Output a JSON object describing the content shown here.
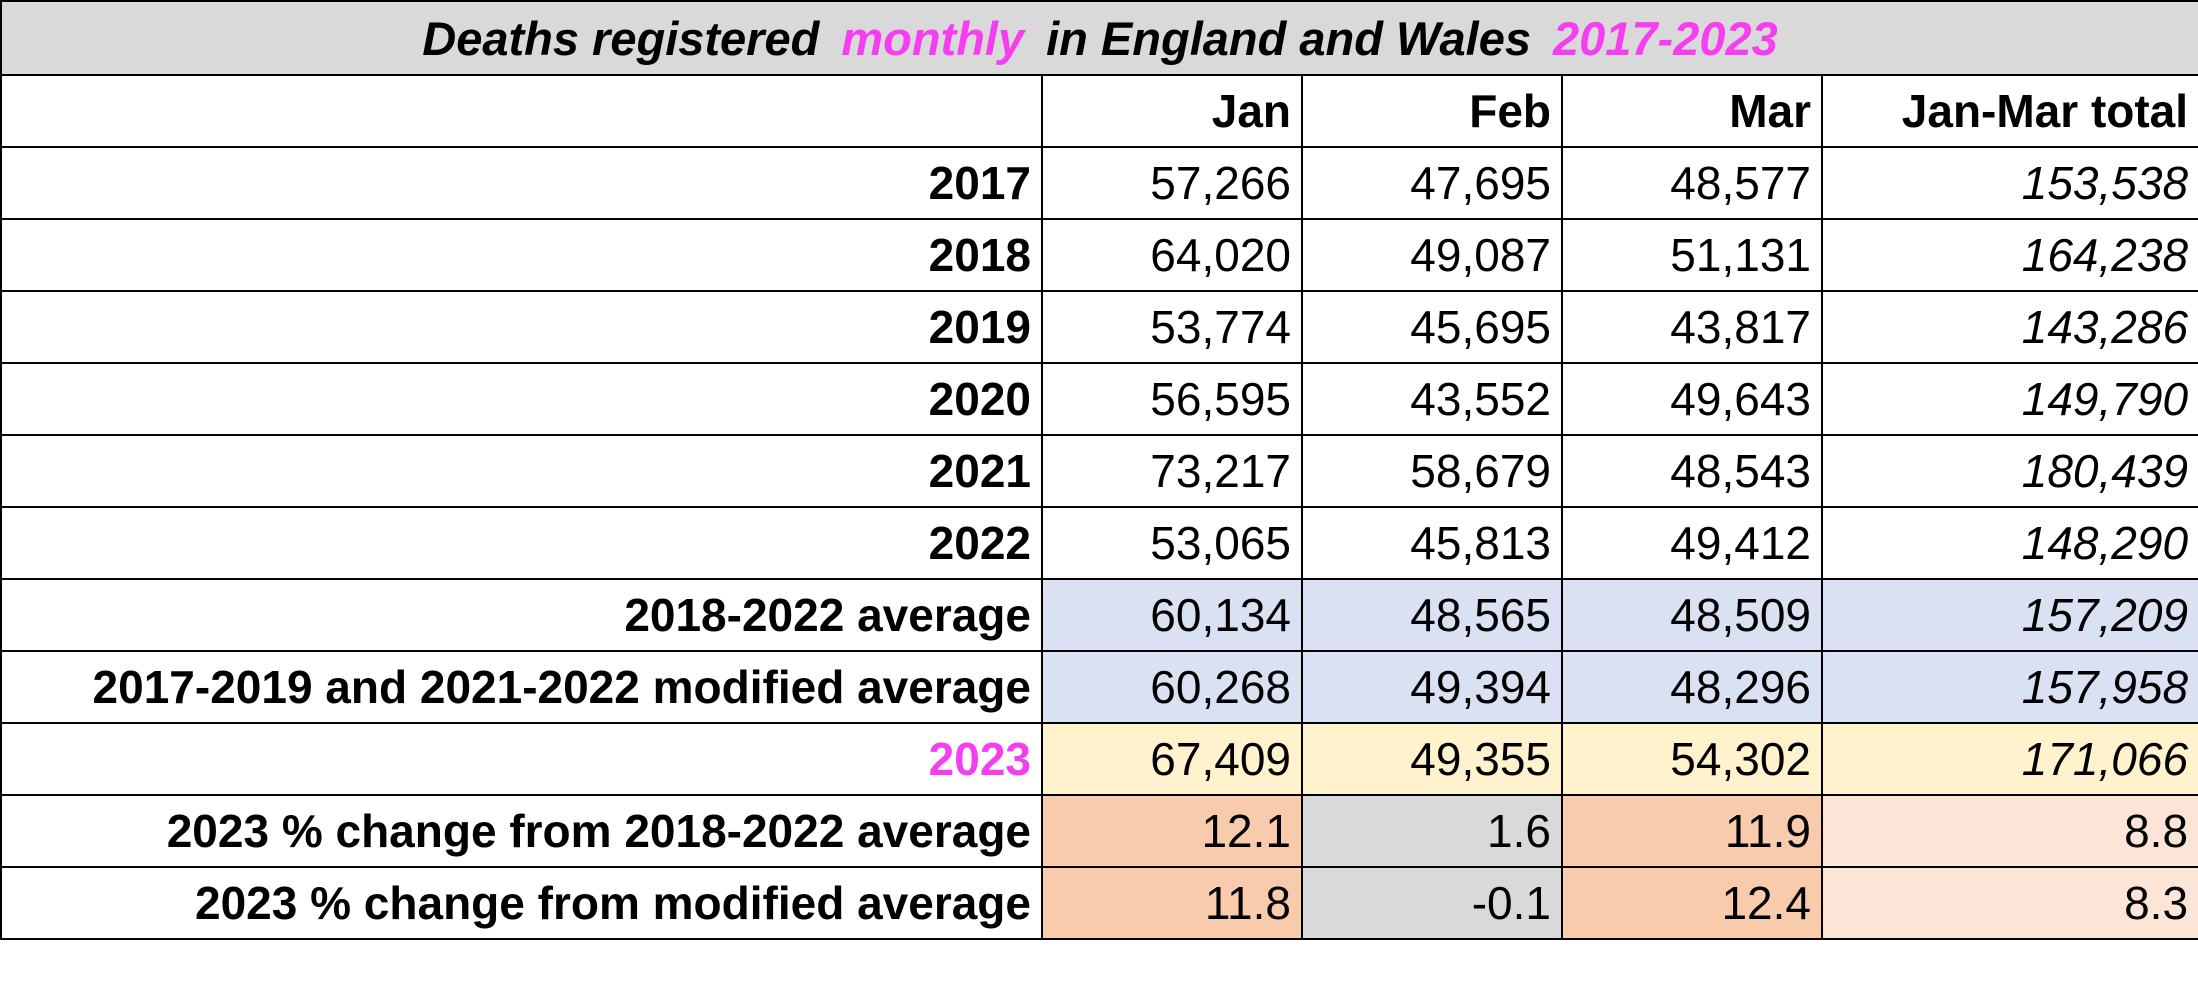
{
  "title": {
    "part1": "Deaths registered",
    "part2": "monthly",
    "part3": "in England and Wales",
    "part4": "2017-2023"
  },
  "colors": {
    "accent_pink": "#f53ef0",
    "title_bg": "#d9d9d9",
    "average_bg": "#d9e1f2",
    "year2023_bg": "#fff2cc",
    "change_high_bg": "#f8cbad",
    "change_low_bg": "#d9d9d9",
    "change_total_bg": "#fce4d6"
  },
  "header": {
    "blank": "",
    "jan": "Jan",
    "feb": "Feb",
    "mar": "Mar",
    "total": "Jan-Mar total"
  },
  "years": [
    {
      "label": "2017",
      "jan": "57,266",
      "feb": "47,695",
      "mar": "48,577",
      "total": "153,538"
    },
    {
      "label": "2018",
      "jan": "64,020",
      "feb": "49,087",
      "mar": "51,131",
      "total": "164,238"
    },
    {
      "label": "2019",
      "jan": "53,774",
      "feb": "45,695",
      "mar": "43,817",
      "total": "143,286"
    },
    {
      "label": "2020",
      "jan": "56,595",
      "feb": "43,552",
      "mar": "49,643",
      "total": "149,790"
    },
    {
      "label": "2021",
      "jan": "73,217",
      "feb": "58,679",
      "mar": "48,543",
      "total": "180,439"
    },
    {
      "label": "2022",
      "jan": "53,065",
      "feb": "45,813",
      "mar": "49,412",
      "total": "148,290"
    }
  ],
  "averages": [
    {
      "label": "2018-2022 average",
      "jan": "60,134",
      "feb": "48,565",
      "mar": "48,509",
      "total": "157,209"
    },
    {
      "label": "2017-2019 and 2021-2022 modified average",
      "jan": "60,268",
      "feb": "49,394",
      "mar": "48,296",
      "total": "157,958"
    }
  ],
  "year_2023": {
    "label": "2023",
    "jan": "67,409",
    "feb": "49,355",
    "mar": "54,302",
    "total": "171,066"
  },
  "changes": [
    {
      "label": "2023 % change from 2018-2022 average",
      "jan": "12.1",
      "feb": "1.6",
      "mar": "11.9",
      "total": "8.8"
    },
    {
      "label": "2023 % change from modified average",
      "jan": "11.8",
      "feb": "-0.1",
      "mar": "12.4",
      "total": "8.3"
    }
  ]
}
